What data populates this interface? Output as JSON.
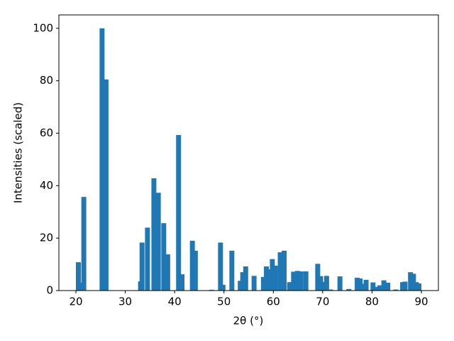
{
  "chart_data": {
    "type": "bar",
    "color": "#1f77b4",
    "xlabel": "2θ (°)",
    "ylabel": "Intensities (scaled)",
    "x": [
      20.5,
      21.0,
      21.6,
      25.3,
      26.1,
      33.1,
      33.4,
      34.5,
      35.8,
      36.7,
      37.8,
      38.6,
      40.8,
      41.5,
      43.6,
      44.2,
      47.5,
      49.3,
      49.8,
      51.6,
      53.3,
      53.8,
      54.4,
      56.1,
      58.0,
      58.6,
      59.2,
      59.8,
      60.4,
      61.4,
      62.2,
      63.3,
      64.1,
      64.9,
      65.6,
      66.6,
      69.0,
      69.6,
      70.3,
      70.8,
      71.6,
      73.5,
      75.3,
      77.0,
      77.6,
      78.3,
      78.8,
      80.2,
      81.0,
      81.6,
      82.4,
      83.2,
      84.8,
      86.2,
      86.7,
      87.8,
      88.4,
      89.0,
      89.5
    ],
    "values": [
      10.8,
      3.0,
      35.7,
      100,
      80.5,
      3.5,
      18.3,
      24.0,
      42.8,
      37.3,
      25.7,
      13.8,
      59.3,
      6.2,
      19.0,
      15.2,
      0.3,
      18.3,
      2.2,
      15.2,
      3.7,
      7.0,
      9.2,
      5.6,
      5.2,
      9.2,
      8.1,
      12.0,
      9.5,
      14.6,
      15.2,
      3.2,
      7.2,
      7.5,
      7.3,
      7.3,
      10.2,
      5.5,
      3.3,
      5.6,
      0.4,
      5.4,
      0.6,
      4.9,
      4.6,
      2.6,
      4.1,
      3.1,
      1.4,
      2.0,
      3.9,
      3.0,
      0.4,
      3.2,
      3.4,
      7.0,
      6.4,
      3.2,
      2.7
    ],
    "xlim": [
      16.55,
      93.45
    ],
    "ylim": [
      0,
      105.1
    ],
    "xticks": [
      20,
      30,
      40,
      50,
      60,
      70,
      80,
      90
    ],
    "yticks": [
      0,
      20,
      40,
      60,
      80,
      100
    ]
  }
}
